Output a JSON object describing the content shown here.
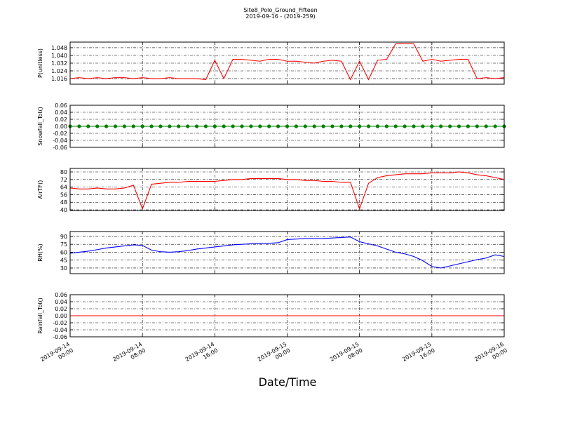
{
  "title": "Site8_Polo_Ground_Fifteen",
  "subtitle": "2019-09-16 - (2019-259)",
  "xlabel": "Date/Time",
  "chart_data": [
    {
      "type": "line",
      "ylabel": "P(unitless)",
      "color": "#ff0000",
      "x": [
        "2019-09-14 00:00",
        "2019-09-14 01:00",
        "2019-09-14 02:00",
        "2019-09-14 03:00",
        "2019-09-14 04:00",
        "2019-09-14 05:00",
        "2019-09-14 06:00",
        "2019-09-14 07:00",
        "2019-09-14 08:00",
        "2019-09-14 09:00",
        "2019-09-14 10:00",
        "2019-09-14 11:00",
        "2019-09-14 12:00",
        "2019-09-14 13:00",
        "2019-09-14 14:00",
        "2019-09-14 15:00",
        "2019-09-14 16:00",
        "2019-09-14 17:00",
        "2019-09-14 18:00",
        "2019-09-14 19:00",
        "2019-09-14 20:00",
        "2019-09-14 21:00",
        "2019-09-14 22:00",
        "2019-09-14 23:00",
        "2019-09-15 00:00",
        "2019-09-15 01:00",
        "2019-09-15 02:00",
        "2019-09-15 03:00",
        "2019-09-15 04:00",
        "2019-09-15 05:00",
        "2019-09-15 06:00",
        "2019-09-15 07:00",
        "2019-09-15 08:00",
        "2019-09-15 09:00",
        "2019-09-15 10:00",
        "2019-09-15 11:00",
        "2019-09-15 12:00",
        "2019-09-15 13:00",
        "2019-09-15 14:00",
        "2019-09-15 15:00",
        "2019-09-15 16:00",
        "2019-09-15 17:00",
        "2019-09-15 18:00",
        "2019-09-15 19:00",
        "2019-09-15 20:00",
        "2019-09-15 21:00",
        "2019-09-15 22:00",
        "2019-09-15 23:00",
        "2019-09-16 00:00"
      ],
      "values": [
        1.016,
        1.017,
        1.016,
        1.017,
        1.016,
        1.017,
        1.017,
        1.016,
        1.017,
        1.016,
        1.016,
        1.017,
        1.016,
        1.016,
        1.016,
        1.015,
        1.035,
        1.016,
        1.036,
        1.036,
        1.035,
        1.034,
        1.036,
        1.036,
        1.034,
        1.034,
        1.033,
        1.032,
        1.034,
        1.035,
        1.034,
        1.015,
        1.034,
        1.015,
        1.035,
        1.036,
        1.052,
        1.052,
        1.052,
        1.034,
        1.036,
        1.034,
        1.035,
        1.036,
        1.036,
        1.016,
        1.017,
        1.016,
        1.017
      ],
      "xlim": [
        "2019-09-14 00:00",
        "2019-09-16 00:00"
      ],
      "xticks": [
        "2019-09-14 00:00",
        "2019-09-14 08:00",
        "2019-09-14 16:00",
        "2019-09-15 00:00",
        "2019-09-15 08:00",
        "2019-09-15 16:00",
        "2019-09-16 00:00"
      ],
      "ylim": [
        1.0102,
        1.0538
      ],
      "yticks": [
        1.016,
        1.024,
        1.032,
        {
          "value": 1.04,
          "label": "1.040"
        },
        1.048
      ],
      "grid": true
    },
    {
      "type": "line",
      "ylabel": "Snowfall_Tot()",
      "color": "#008000",
      "marker": "o",
      "x": [
        "2019-09-14 00:00",
        "2019-09-14 01:00",
        "2019-09-14 02:00",
        "2019-09-14 03:00",
        "2019-09-14 04:00",
        "2019-09-14 05:00",
        "2019-09-14 06:00",
        "2019-09-14 07:00",
        "2019-09-14 08:00",
        "2019-09-14 09:00",
        "2019-09-14 10:00",
        "2019-09-14 11:00",
        "2019-09-14 12:00",
        "2019-09-14 13:00",
        "2019-09-14 14:00",
        "2019-09-14 15:00",
        "2019-09-14 16:00",
        "2019-09-14 17:00",
        "2019-09-14 18:00",
        "2019-09-14 19:00",
        "2019-09-14 20:00",
        "2019-09-14 21:00",
        "2019-09-14 22:00",
        "2019-09-14 23:00",
        "2019-09-15 00:00",
        "2019-09-15 01:00",
        "2019-09-15 02:00",
        "2019-09-15 03:00",
        "2019-09-15 04:00",
        "2019-09-15 05:00",
        "2019-09-15 06:00",
        "2019-09-15 07:00",
        "2019-09-15 08:00",
        "2019-09-15 09:00",
        "2019-09-15 10:00",
        "2019-09-15 11:00",
        "2019-09-15 12:00",
        "2019-09-15 13:00",
        "2019-09-15 14:00",
        "2019-09-15 15:00",
        "2019-09-15 16:00",
        "2019-09-15 17:00",
        "2019-09-15 18:00",
        "2019-09-15 19:00",
        "2019-09-15 20:00",
        "2019-09-15 21:00",
        "2019-09-15 22:00",
        "2019-09-15 23:00",
        "2019-09-16 00:00"
      ],
      "values": [
        0,
        0,
        0,
        0,
        0,
        0,
        0,
        0,
        0,
        0,
        0,
        0,
        0,
        0,
        0,
        0,
        0,
        0,
        0,
        0,
        0,
        0,
        0,
        0,
        0,
        0,
        0,
        0,
        0,
        0,
        0,
        0,
        0,
        0,
        0,
        0,
        0,
        0,
        0,
        0,
        0,
        0,
        0,
        0,
        0,
        0,
        0,
        0,
        0
      ],
      "xlim": [
        "2019-09-14 00:00",
        "2019-09-16 00:00"
      ],
      "xticks": [
        "2019-09-14 00:00",
        "2019-09-14 08:00",
        "2019-09-14 16:00",
        "2019-09-15 00:00",
        "2019-09-15 08:00",
        "2019-09-15 16:00",
        "2019-09-16 00:00"
      ],
      "ylim": [
        -0.06,
        0.06
      ],
      "yticks": [
        -0.06,
        -0.04,
        -0.02,
        {
          "value": 0,
          "label": "0.00"
        },
        0.02,
        0.04,
        0.06
      ],
      "grid": true
    },
    {
      "type": "line",
      "ylabel": "AirTF()",
      "color": "#ff0000",
      "x": [
        "2019-09-14 00:00",
        "2019-09-14 01:00",
        "2019-09-14 02:00",
        "2019-09-14 03:00",
        "2019-09-14 04:00",
        "2019-09-14 05:00",
        "2019-09-14 06:00",
        "2019-09-14 07:00",
        "2019-09-14 08:00",
        "2019-09-14 09:00",
        "2019-09-14 10:00",
        "2019-09-14 11:00",
        "2019-09-14 12:00",
        "2019-09-14 13:00",
        "2019-09-14 14:00",
        "2019-09-14 15:00",
        "2019-09-14 16:00",
        "2019-09-14 17:00",
        "2019-09-14 18:00",
        "2019-09-14 19:00",
        "2019-09-14 20:00",
        "2019-09-14 21:00",
        "2019-09-14 22:00",
        "2019-09-14 23:00",
        "2019-09-15 00:00",
        "2019-09-15 01:00",
        "2019-09-15 02:00",
        "2019-09-15 03:00",
        "2019-09-15 04:00",
        "2019-09-15 05:00",
        "2019-09-15 06:00",
        "2019-09-15 07:00",
        "2019-09-15 08:00",
        "2019-09-15 09:00",
        "2019-09-15 10:00",
        "2019-09-15 11:00",
        "2019-09-15 12:00",
        "2019-09-15 13:00",
        "2019-09-15 14:00",
        "2019-09-15 15:00",
        "2019-09-15 16:00",
        "2019-09-15 17:00",
        "2019-09-15 18:00",
        "2019-09-15 19:00",
        "2019-09-15 20:00",
        "2019-09-15 21:00",
        "2019-09-15 22:00",
        "2019-09-15 23:00",
        "2019-09-16 00:00"
      ],
      "values": [
        63,
        62,
        62,
        63,
        62,
        62,
        63,
        66,
        41,
        67,
        68,
        69,
        69,
        70,
        70,
        70,
        70,
        71,
        72,
        72,
        73,
        73,
        73,
        73,
        72,
        72,
        71,
        71,
        70,
        70,
        69,
        69,
        41,
        68,
        74,
        76,
        77,
        78,
        78,
        78,
        79,
        79,
        79,
        80,
        79,
        77,
        76,
        74,
        72
      ],
      "xlim": [
        "2019-09-14 00:00",
        "2019-09-16 00:00"
      ],
      "xticks": [
        "2019-09-14 00:00",
        "2019-09-14 08:00",
        "2019-09-14 16:00",
        "2019-09-15 00:00",
        "2019-09-15 08:00",
        "2019-09-15 16:00",
        "2019-09-16 00:00"
      ],
      "ylim": [
        39.3,
        83.7
      ],
      "yticks": [
        40,
        48,
        56,
        64,
        72,
        80
      ],
      "grid": true
    },
    {
      "type": "line",
      "ylabel": "RH(%)",
      "color": "#0000ff",
      "x": [
        "2019-09-14 00:00",
        "2019-09-14 01:00",
        "2019-09-14 02:00",
        "2019-09-14 03:00",
        "2019-09-14 04:00",
        "2019-09-14 05:00",
        "2019-09-14 06:00",
        "2019-09-14 07:00",
        "2019-09-14 08:00",
        "2019-09-14 09:00",
        "2019-09-14 10:00",
        "2019-09-14 11:00",
        "2019-09-14 12:00",
        "2019-09-14 13:00",
        "2019-09-14 14:00",
        "2019-09-14 15:00",
        "2019-09-14 16:00",
        "2019-09-14 17:00",
        "2019-09-14 18:00",
        "2019-09-14 19:00",
        "2019-09-14 20:00",
        "2019-09-14 21:00",
        "2019-09-14 22:00",
        "2019-09-14 23:00",
        "2019-09-15 00:00",
        "2019-09-15 01:00",
        "2019-09-15 02:00",
        "2019-09-15 03:00",
        "2019-09-15 04:00",
        "2019-09-15 05:00",
        "2019-09-15 06:00",
        "2019-09-15 07:00",
        "2019-09-15 08:00",
        "2019-09-15 09:00",
        "2019-09-15 10:00",
        "2019-09-15 11:00",
        "2019-09-15 12:00",
        "2019-09-15 13:00",
        "2019-09-15 14:00",
        "2019-09-15 15:00",
        "2019-09-15 16:00",
        "2019-09-15 17:00",
        "2019-09-15 18:00",
        "2019-09-15 19:00",
        "2019-09-15 20:00",
        "2019-09-15 21:00",
        "2019-09-15 22:00",
        "2019-09-15 23:00",
        "2019-09-16 00:00"
      ],
      "values": [
        58,
        60,
        62,
        65,
        68,
        70,
        72,
        74,
        73,
        64,
        61,
        60,
        61,
        63,
        66,
        68,
        70,
        72,
        74,
        75,
        76,
        77,
        77,
        78,
        84,
        85,
        86,
        86,
        86,
        87,
        88,
        89,
        80,
        76,
        72,
        66,
        60,
        57,
        52,
        44,
        33,
        30,
        34,
        38,
        42,
        46,
        49,
        55,
        52
      ],
      "xlim": [
        "2019-09-14 00:00",
        "2019-09-16 00:00"
      ],
      "xticks": [
        "2019-09-14 00:00",
        "2019-09-14 08:00",
        "2019-09-14 16:00",
        "2019-09-15 00:00",
        "2019-09-15 08:00",
        "2019-09-15 16:00",
        "2019-09-16 00:00"
      ],
      "ylim": [
        19.3,
        99.3
      ],
      "yticks": [
        30,
        45,
        60,
        75,
        90
      ],
      "grid": true
    },
    {
      "type": "line",
      "ylabel": "Rainfall_Tot()",
      "color": "#ff0000",
      "x": [
        "2019-09-14 00:00",
        "2019-09-16 00:00"
      ],
      "values": [
        0,
        0
      ],
      "xlim": [
        "2019-09-14 00:00",
        "2019-09-16 00:00"
      ],
      "xticks": [
        "2019-09-14 00:00",
        "2019-09-14 08:00",
        "2019-09-14 16:00",
        "2019-09-15 00:00",
        "2019-09-15 08:00",
        "2019-09-15 16:00",
        "2019-09-16 00:00"
      ],
      "xtick_labels": true,
      "ylim": [
        -0.06,
        0.06
      ],
      "yticks": [
        -0.06,
        -0.04,
        -0.02,
        {
          "value": 0,
          "label": "0.00"
        },
        0.02,
        0.04,
        0.06
      ],
      "grid": true
    }
  ]
}
